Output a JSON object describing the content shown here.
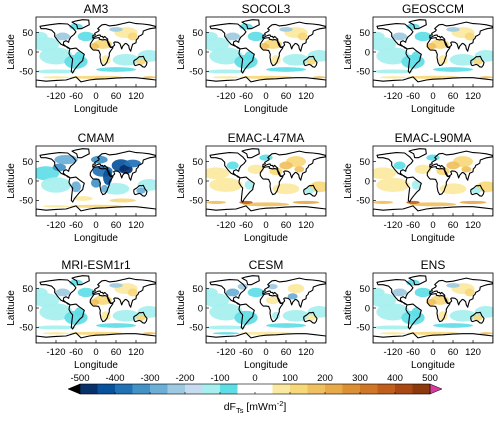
{
  "axis_labels": {
    "x": "Longitude",
    "y": "Latitude"
  },
  "x_ticks": [
    "-120",
    "-60",
    "0",
    "60",
    "120"
  ],
  "y_ticks": [
    "50",
    "0",
    "-50"
  ],
  "panels": [
    {
      "title": "AM3",
      "pattern": "land_warm"
    },
    {
      "title": "SOCOL3",
      "pattern": "land_warm"
    },
    {
      "title": "GEOSCCM",
      "pattern": "land_warm"
    },
    {
      "title": "CMAM",
      "pattern": "strong_cold"
    },
    {
      "title": "EMAC-L47MA",
      "pattern": "ocean_warm"
    },
    {
      "title": "EMAC-L90MA",
      "pattern": "ocean_warm"
    },
    {
      "title": "MRI-ESM1r1",
      "pattern": "land_warm"
    },
    {
      "title": "CESM",
      "pattern": "mixed"
    },
    {
      "title": "ENS",
      "pattern": "land_warm"
    }
  ],
  "colorbar": {
    "ticks": [
      "-500",
      "-400",
      "-300",
      "-200",
      "-100",
      "0",
      "100",
      "200",
      "300",
      "400",
      "500"
    ],
    "label_main": "dF",
    "label_sub": "Ts",
    "label_unit_pre": " [mWm",
    "label_unit_sup": "-2",
    "label_unit_post": "]",
    "colors": [
      "#08306b",
      "#08519c",
      "#2171b5",
      "#4292c6",
      "#6baed6",
      "#9ecae1",
      "#c6dbef",
      "#a5f0ef",
      "#5fdde6",
      "#ffffff",
      "#ffffff",
      "#fbe9a0",
      "#f7d878",
      "#f0c060",
      "#e7a94a",
      "#dc9035",
      "#cf7727",
      "#c05f1c",
      "#a94812",
      "#8c3a0c"
    ],
    "low_arrow_color": "#000000",
    "high_arrow_color": "#d63aa0"
  },
  "chart_data": {
    "type": "map",
    "x_range": [
      -180,
      180
    ],
    "y_range": [
      -90,
      90
    ],
    "color_range": [
      -500,
      500
    ]
  }
}
